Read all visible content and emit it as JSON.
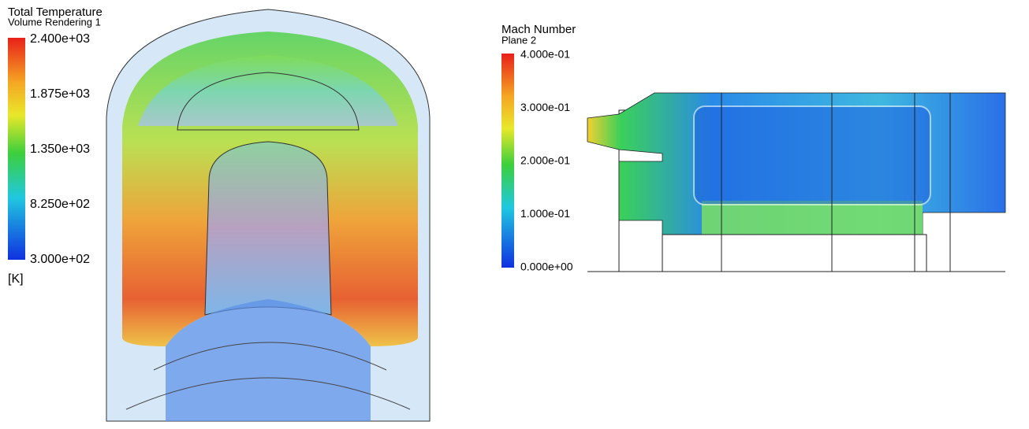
{
  "panels": [
    {
      "title": "Total Temperature",
      "subtitle": "Volume Rendering 1",
      "ticks": [
        "2.400e+03",
        "1.875e+03",
        "1.350e+03",
        "8.250e+02",
        "3.000e+02"
      ],
      "unit": "[K]"
    },
    {
      "title": "Mach Number",
      "subtitle": "Plane 2",
      "ticks": [
        "4.000e-01",
        "3.000e-01",
        "2.000e-01",
        "1.000e-01",
        "0.000e+00"
      ]
    }
  ]
}
